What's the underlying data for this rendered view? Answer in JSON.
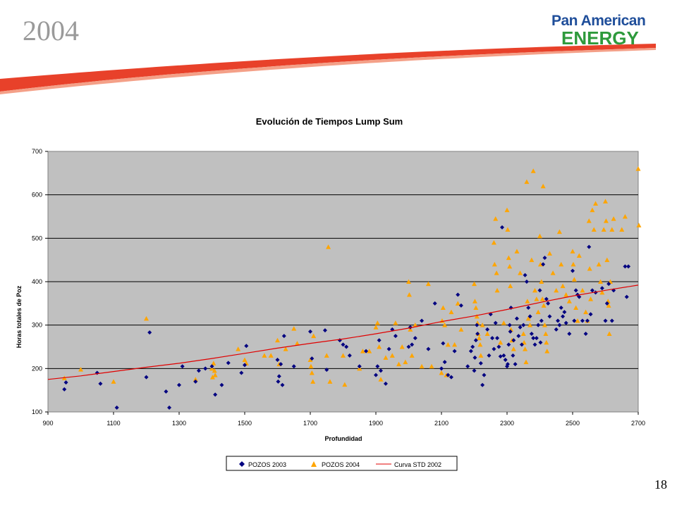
{
  "slide": {
    "title": "2004",
    "page_number": "18"
  },
  "logo": {
    "line1": "Pan American",
    "line2": "ENERGY"
  },
  "colors": {
    "plot_bg": "#c0c0c0",
    "series_2003": "#000080",
    "series_2004": "#ffa500",
    "curve": "#e00000",
    "swoosh": "#e8412a",
    "logo_blue": "#1f4e9a",
    "logo_green": "#2e9a3c"
  },
  "chart_data": {
    "type": "scatter",
    "title": "Evolución de Tiempos Lump Sum",
    "xlabel": "Profundidad",
    "ylabel": "Horas totales de Poz",
    "xlim": [
      900,
      2700
    ],
    "ylim": [
      100,
      700
    ],
    "x_ticks": [
      "900",
      "1100",
      "1300",
      "1500",
      "1700",
      "1900",
      "2100",
      "2300",
      "2500",
      "2700"
    ],
    "y_ticks": [
      "100",
      "200",
      "300",
      "400",
      "500",
      "600",
      "700"
    ],
    "grid": "horizontal",
    "legend_position": "bottom",
    "series": [
      {
        "name": "POZOS 2003",
        "marker": "diamond",
        "points": [
          [
            950,
            152
          ],
          [
            955,
            168
          ],
          [
            1050,
            190
          ],
          [
            1060,
            165
          ],
          [
            1110,
            110
          ],
          [
            1200,
            180
          ],
          [
            1210,
            283
          ],
          [
            1260,
            147
          ],
          [
            1270,
            110
          ],
          [
            1300,
            162
          ],
          [
            1310,
            205
          ],
          [
            1350,
            170
          ],
          [
            1360,
            195
          ],
          [
            1380,
            200
          ],
          [
            1400,
            205
          ],
          [
            1410,
            140
          ],
          [
            1430,
            162
          ],
          [
            1450,
            213
          ],
          [
            1490,
            190
          ],
          [
            1500,
            208
          ],
          [
            1505,
            252
          ],
          [
            1600,
            220
          ],
          [
            1602,
            170
          ],
          [
            1605,
            182
          ],
          [
            1610,
            210
          ],
          [
            1615,
            162
          ],
          [
            1620,
            275
          ],
          [
            1650,
            205
          ],
          [
            1700,
            285
          ],
          [
            1705,
            223
          ],
          [
            1745,
            288
          ],
          [
            1750,
            197
          ],
          [
            1790,
            265
          ],
          [
            1800,
            255
          ],
          [
            1810,
            250
          ],
          [
            1820,
            230
          ],
          [
            1850,
            205
          ],
          [
            1870,
            240
          ],
          [
            1900,
            185
          ],
          [
            1905,
            205
          ],
          [
            1910,
            265
          ],
          [
            1915,
            195
          ],
          [
            1930,
            165
          ],
          [
            1940,
            245
          ],
          [
            1950,
            290
          ],
          [
            1960,
            275
          ],
          [
            2000,
            250
          ],
          [
            2005,
            295
          ],
          [
            2010,
            255
          ],
          [
            2020,
            270
          ],
          [
            2040,
            310
          ],
          [
            2060,
            245
          ],
          [
            2080,
            350
          ],
          [
            2100,
            200
          ],
          [
            2105,
            258
          ],
          [
            2110,
            215
          ],
          [
            2120,
            185
          ],
          [
            2130,
            180
          ],
          [
            2140,
            240
          ],
          [
            2150,
            370
          ],
          [
            2160,
            345
          ],
          [
            2180,
            205
          ],
          [
            2190,
            240
          ],
          [
            2195,
            250
          ],
          [
            2200,
            195
          ],
          [
            2202,
            225
          ],
          [
            2205,
            265
          ],
          [
            2208,
            300
          ],
          [
            2210,
            280
          ],
          [
            2220,
            212
          ],
          [
            2225,
            162
          ],
          [
            2230,
            185
          ],
          [
            2240,
            290
          ],
          [
            2245,
            230
          ],
          [
            2250,
            325
          ],
          [
            2255,
            270
          ],
          [
            2260,
            245
          ],
          [
            2265,
            305
          ],
          [
            2270,
            270
          ],
          [
            2275,
            250
          ],
          [
            2280,
            228
          ],
          [
            2285,
            525
          ],
          [
            2290,
            230
          ],
          [
            2295,
            220
          ],
          [
            2300,
            205
          ],
          [
            2302,
            210
          ],
          [
            2305,
            255
          ],
          [
            2308,
            300
          ],
          [
            2310,
            285
          ],
          [
            2312,
            340
          ],
          [
            2318,
            230
          ],
          [
            2320,
            265
          ],
          [
            2325,
            210
          ],
          [
            2330,
            315
          ],
          [
            2335,
            275
          ],
          [
            2340,
            295
          ],
          [
            2345,
            255
          ],
          [
            2350,
            300
          ],
          [
            2355,
            415
          ],
          [
            2360,
            400
          ],
          [
            2365,
            340
          ],
          [
            2370,
            320
          ],
          [
            2375,
            280
          ],
          [
            2380,
            270
          ],
          [
            2385,
            255
          ],
          [
            2390,
            270
          ],
          [
            2395,
            300
          ],
          [
            2400,
            380
          ],
          [
            2402,
            260
          ],
          [
            2405,
            310
          ],
          [
            2410,
            440
          ],
          [
            2415,
            455
          ],
          [
            2420,
            360
          ],
          [
            2425,
            350
          ],
          [
            2430,
            320
          ],
          [
            2450,
            290
          ],
          [
            2455,
            310
          ],
          [
            2460,
            300
          ],
          [
            2465,
            340
          ],
          [
            2470,
            320
          ],
          [
            2475,
            330
          ],
          [
            2480,
            305
          ],
          [
            2490,
            280
          ],
          [
            2500,
            425
          ],
          [
            2505,
            310
          ],
          [
            2510,
            380
          ],
          [
            2515,
            370
          ],
          [
            2520,
            365
          ],
          [
            2530,
            310
          ],
          [
            2540,
            280
          ],
          [
            2545,
            310
          ],
          [
            2550,
            480
          ],
          [
            2555,
            325
          ],
          [
            2560,
            380
          ],
          [
            2570,
            375
          ],
          [
            2590,
            385
          ],
          [
            2600,
            310
          ],
          [
            2605,
            350
          ],
          [
            2610,
            395
          ],
          [
            2620,
            310
          ],
          [
            2625,
            380
          ],
          [
            2660,
            435
          ],
          [
            2665,
            365
          ],
          [
            2670,
            435
          ]
        ]
      },
      {
        "name": "POZOS 2004",
        "marker": "triangle",
        "points": [
          [
            950,
            178
          ],
          [
            1000,
            198
          ],
          [
            1100,
            170
          ],
          [
            1200,
            315
          ],
          [
            1350,
            175
          ],
          [
            1400,
            200
          ],
          [
            1402,
            180
          ],
          [
            1405,
            212
          ],
          [
            1408,
            195
          ],
          [
            1410,
            185
          ],
          [
            1480,
            245
          ],
          [
            1500,
            220
          ],
          [
            1505,
            212
          ],
          [
            1560,
            230
          ],
          [
            1580,
            230
          ],
          [
            1600,
            265
          ],
          [
            1605,
            210
          ],
          [
            1625,
            245
          ],
          [
            1650,
            292
          ],
          [
            1660,
            258
          ],
          [
            1700,
            220
          ],
          [
            1702,
            205
          ],
          [
            1705,
            190
          ],
          [
            1708,
            170
          ],
          [
            1710,
            275
          ],
          [
            1750,
            230
          ],
          [
            1755,
            480
          ],
          [
            1760,
            170
          ],
          [
            1800,
            230
          ],
          [
            1805,
            163
          ],
          [
            1850,
            200
          ],
          [
            1860,
            240
          ],
          [
            1880,
            240
          ],
          [
            1900,
            295
          ],
          [
            1905,
            305
          ],
          [
            1910,
            250
          ],
          [
            1915,
            175
          ],
          [
            1930,
            225
          ],
          [
            1950,
            230
          ],
          [
            1960,
            305
          ],
          [
            1970,
            210
          ],
          [
            1980,
            250
          ],
          [
            1990,
            215
          ],
          [
            2000,
            400
          ],
          [
            2002,
            370
          ],
          [
            2005,
            290
          ],
          [
            2010,
            230
          ],
          [
            2020,
            300
          ],
          [
            2040,
            205
          ],
          [
            2060,
            395
          ],
          [
            2070,
            205
          ],
          [
            2100,
            190
          ],
          [
            2102,
            310
          ],
          [
            2105,
            340
          ],
          [
            2110,
            300
          ],
          [
            2115,
            185
          ],
          [
            2120,
            255
          ],
          [
            2130,
            330
          ],
          [
            2140,
            255
          ],
          [
            2150,
            350
          ],
          [
            2160,
            290
          ],
          [
            2200,
            395
          ],
          [
            2202,
            355
          ],
          [
            2205,
            340
          ],
          [
            2208,
            320
          ],
          [
            2210,
            305
          ],
          [
            2212,
            280
          ],
          [
            2215,
            270
          ],
          [
            2218,
            255
          ],
          [
            2220,
            230
          ],
          [
            2225,
            300
          ],
          [
            2240,
            280
          ],
          [
            2260,
            490
          ],
          [
            2262,
            440
          ],
          [
            2265,
            545
          ],
          [
            2268,
            420
          ],
          [
            2270,
            380
          ],
          [
            2280,
            260
          ],
          [
            2290,
            305
          ],
          [
            2300,
            565
          ],
          [
            2302,
            520
          ],
          [
            2305,
            455
          ],
          [
            2308,
            435
          ],
          [
            2310,
            390
          ],
          [
            2312,
            290
          ],
          [
            2315,
            265
          ],
          [
            2320,
            245
          ],
          [
            2330,
            470
          ],
          [
            2340,
            420
          ],
          [
            2350,
            280
          ],
          [
            2352,
            260
          ],
          [
            2355,
            245
          ],
          [
            2358,
            215
          ],
          [
            2360,
            630
          ],
          [
            2362,
            355
          ],
          [
            2365,
            315
          ],
          [
            2370,
            300
          ],
          [
            2375,
            450
          ],
          [
            2380,
            655
          ],
          [
            2385,
            380
          ],
          [
            2390,
            360
          ],
          [
            2395,
            330
          ],
          [
            2400,
            505
          ],
          [
            2402,
            440
          ],
          [
            2405,
            400
          ],
          [
            2408,
            360
          ],
          [
            2410,
            620
          ],
          [
            2412,
            345
          ],
          [
            2415,
            300
          ],
          [
            2418,
            280
          ],
          [
            2420,
            260
          ],
          [
            2422,
            240
          ],
          [
            2430,
            465
          ],
          [
            2440,
            420
          ],
          [
            2450,
            380
          ],
          [
            2460,
            515
          ],
          [
            2465,
            440
          ],
          [
            2470,
            390
          ],
          [
            2480,
            370
          ],
          [
            2490,
            355
          ],
          [
            2500,
            470
          ],
          [
            2502,
            440
          ],
          [
            2505,
            405
          ],
          [
            2510,
            340
          ],
          [
            2515,
            310
          ],
          [
            2520,
            460
          ],
          [
            2530,
            380
          ],
          [
            2540,
            330
          ],
          [
            2545,
            310
          ],
          [
            2550,
            540
          ],
          [
            2552,
            430
          ],
          [
            2555,
            360
          ],
          [
            2560,
            565
          ],
          [
            2565,
            520
          ],
          [
            2570,
            580
          ],
          [
            2580,
            440
          ],
          [
            2585,
            400
          ],
          [
            2590,
            375
          ],
          [
            2595,
            520
          ],
          [
            2600,
            585
          ],
          [
            2602,
            540
          ],
          [
            2605,
            450
          ],
          [
            2608,
            355
          ],
          [
            2610,
            345
          ],
          [
            2612,
            280
          ],
          [
            2615,
            400
          ],
          [
            2620,
            520
          ],
          [
            2625,
            545
          ],
          [
            2650,
            520
          ],
          [
            2660,
            550
          ],
          [
            2700,
            660
          ],
          [
            2702,
            530
          ]
        ]
      },
      {
        "name": "Curva STD 2002",
        "marker": "line",
        "points": [
          [
            900,
            175
          ],
          [
            1000,
            183
          ],
          [
            1100,
            193
          ],
          [
            1200,
            203
          ],
          [
            1300,
            212
          ],
          [
            1400,
            223
          ],
          [
            1500,
            235
          ],
          [
            1600,
            247
          ],
          [
            1700,
            258
          ],
          [
            1800,
            268
          ],
          [
            1900,
            280
          ],
          [
            2000,
            293
          ],
          [
            2100,
            308
          ],
          [
            2200,
            321
          ],
          [
            2300,
            336
          ],
          [
            2400,
            352
          ],
          [
            2500,
            367
          ],
          [
            2600,
            380
          ],
          [
            2700,
            392
          ]
        ]
      }
    ]
  }
}
